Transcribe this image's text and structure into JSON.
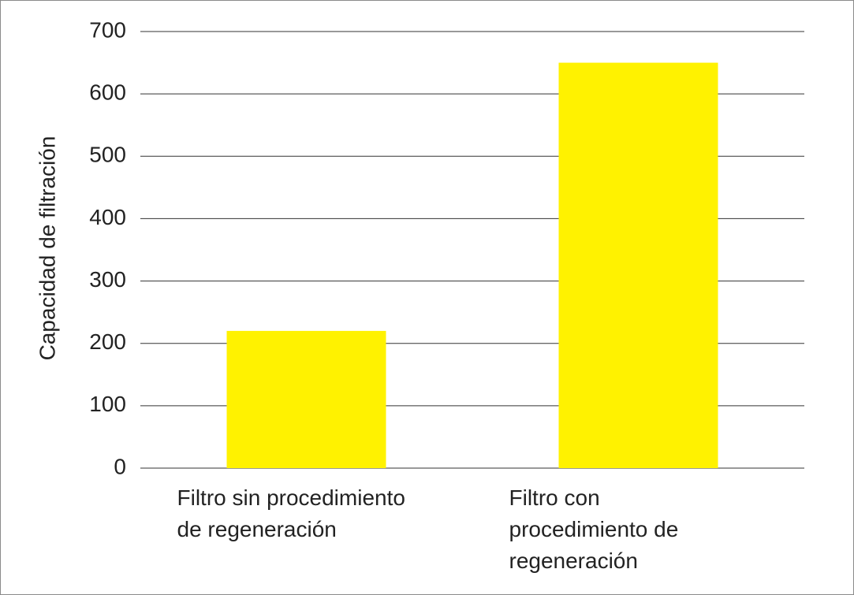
{
  "chart_data": {
    "type": "bar",
    "y_label": "Capacidad de filtración",
    "categories": [
      "Filtro sin procedimiento de regeneración",
      "Filtro con procedimiento de regeneración"
    ],
    "values": [
      220,
      650
    ],
    "color": "#fff200",
    "ylim": [
      0,
      700
    ],
    "yticks": [
      0,
      100,
      200,
      300,
      400,
      500,
      600,
      700
    ],
    "grid": true
  }
}
